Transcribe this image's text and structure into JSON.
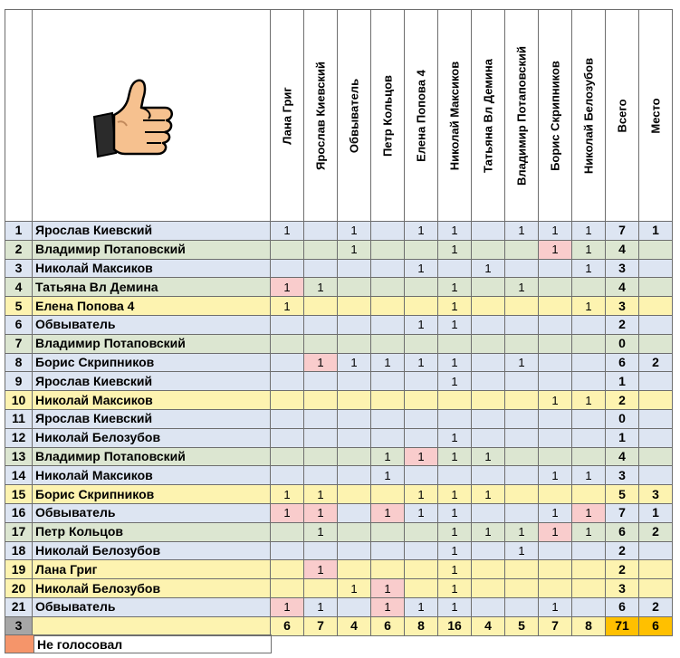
{
  "colors": {
    "blue": "#dde5f2",
    "green": "#dce6d1",
    "yellow": "#fdf3b0",
    "pink": "#f9cccc",
    "gray": "#a6a6a6",
    "orange": "#ffc000",
    "legend": "#f5956a",
    "white": "#ffffff"
  },
  "header": {
    "logo_icon": "thumbs-up-icon",
    "columns": [
      "Лана Григ",
      "Ярослав Киевский",
      "Обвыватель",
      "Петр Кольцов",
      "Елена Попова 4",
      "Николай Максиков",
      "Татьяна Вл Демина",
      "Владимир Потаповский",
      "Борис Скрипников",
      "Николай Белозубов",
      "Всего",
      "Место"
    ]
  },
  "rows": [
    {
      "num": "1",
      "name": "Ярослав Киевский",
      "rc": "blue",
      "cells": [
        "1",
        "",
        "1",
        "",
        "1",
        "1",
        "",
        "1",
        "1",
        "1"
      ],
      "pink": [],
      "total": "7",
      "place": "1"
    },
    {
      "num": "2",
      "name": "Владимир Потаповский",
      "rc": "green",
      "cells": [
        "",
        "",
        "1",
        "",
        "",
        "1",
        "",
        "",
        "1",
        "1"
      ],
      "pink": [
        8
      ],
      "total": "4",
      "place": ""
    },
    {
      "num": "3",
      "name": "Николай Максиков",
      "rc": "blue",
      "cells": [
        "",
        "",
        "",
        "",
        "1",
        "",
        "1",
        "",
        "",
        "1"
      ],
      "pink": [],
      "total": "3",
      "place": ""
    },
    {
      "num": "4",
      "name": "Татьяна Вл Демина",
      "rc": "green",
      "cells": [
        "1",
        "1",
        "",
        "",
        "",
        "1",
        "",
        "1",
        "",
        ""
      ],
      "pink": [
        0
      ],
      "total": "4",
      "place": ""
    },
    {
      "num": "5",
      "name": "Елена Попова 4",
      "rc": "yellow",
      "cells": [
        "1",
        "",
        "",
        "",
        "",
        "1",
        "",
        "",
        "",
        "1"
      ],
      "pink": [],
      "total": "3",
      "place": ""
    },
    {
      "num": "6",
      "name": "Обвыватель",
      "rc": "blue",
      "cells": [
        "",
        "",
        "",
        "",
        "1",
        "1",
        "",
        "",
        "",
        ""
      ],
      "pink": [],
      "total": "2",
      "place": ""
    },
    {
      "num": "7",
      "name": "Владимир Потаповский",
      "rc": "green",
      "cells": [
        "",
        "",
        "",
        "",
        "",
        "",
        "",
        "",
        "",
        ""
      ],
      "pink": [],
      "total": "0",
      "place": ""
    },
    {
      "num": "8",
      "name": "Борис Скрипников",
      "rc": "blue",
      "cells": [
        "",
        "1",
        "1",
        "1",
        "1",
        "1",
        "",
        "1",
        "",
        ""
      ],
      "pink": [
        1
      ],
      "total": "6",
      "place": "2"
    },
    {
      "num": "9",
      "name": "Ярослав Киевский",
      "rc": "blue",
      "cells": [
        "",
        "",
        "",
        "",
        "",
        "1",
        "",
        "",
        "",
        ""
      ],
      "pink": [],
      "total": "1",
      "place": ""
    },
    {
      "num": "10",
      "name": "Николай Максиков",
      "rc": "yellow",
      "cells": [
        "",
        "",
        "",
        "",
        "",
        "",
        "",
        "",
        "1",
        "1"
      ],
      "pink": [],
      "total": "2",
      "place": ""
    },
    {
      "num": "11",
      "name": "Ярослав Киевский",
      "rc": "blue",
      "cells": [
        "",
        "",
        "",
        "",
        "",
        "",
        "",
        "",
        "",
        ""
      ],
      "pink": [],
      "total": "0",
      "place": ""
    },
    {
      "num": "12",
      "name": "Николай Белозубов",
      "rc": "blue",
      "cells": [
        "",
        "",
        "",
        "",
        "",
        "1",
        "",
        "",
        "",
        ""
      ],
      "pink": [],
      "total": "1",
      "place": ""
    },
    {
      "num": "13",
      "name": "Владимир Потаповский",
      "rc": "green",
      "cells": [
        "",
        "",
        "",
        "1",
        "1",
        "1",
        "1",
        "",
        "",
        ""
      ],
      "pink": [
        4
      ],
      "total": "4",
      "place": ""
    },
    {
      "num": "14",
      "name": "Николай Максиков",
      "rc": "blue",
      "cells": [
        "",
        "",
        "",
        "1",
        "",
        "",
        "",
        "",
        "1",
        "1"
      ],
      "pink": [],
      "total": "3",
      "place": ""
    },
    {
      "num": "15",
      "name": "Борис Скрипников",
      "rc": "yellow",
      "cells": [
        "1",
        "1",
        "",
        "",
        "1",
        "1",
        "1",
        "",
        "",
        ""
      ],
      "pink": [],
      "total": "5",
      "place": "3"
    },
    {
      "num": "16",
      "name": "Обвыватель",
      "rc": "blue",
      "cells": [
        "1",
        "1",
        "",
        "1",
        "1",
        "1",
        "",
        "",
        "1",
        "1"
      ],
      "pink": [
        0,
        1,
        3,
        9
      ],
      "total": "7",
      "place": "1"
    },
    {
      "num": "17",
      "name": "Петр Кольцов",
      "rc": "green",
      "cells": [
        "",
        "1",
        "",
        "",
        "",
        "1",
        "1",
        "1",
        "1",
        "1"
      ],
      "pink": [
        8
      ],
      "total": "6",
      "place": "2"
    },
    {
      "num": "18",
      "name": "Николай Белозубов",
      "rc": "blue",
      "cells": [
        "",
        "",
        "",
        "",
        "",
        "1",
        "",
        "1",
        "",
        ""
      ],
      "pink": [],
      "total": "2",
      "place": ""
    },
    {
      "num": "19",
      "name": "Лана Григ",
      "rc": "yellow",
      "cells": [
        "",
        "1",
        "",
        "",
        "",
        "1",
        "",
        "",
        "",
        ""
      ],
      "pink": [
        1
      ],
      "total": "2",
      "place": ""
    },
    {
      "num": "20",
      "name": "Николай Белозубов",
      "rc": "yellow",
      "cells": [
        "",
        "",
        "1",
        "1",
        "",
        "1",
        "",
        "",
        "",
        ""
      ],
      "pink": [
        3
      ],
      "total": "3",
      "place": ""
    },
    {
      "num": "21",
      "name": "Обвыватель",
      "rc": "blue",
      "cells": [
        "1",
        "1",
        "",
        "1",
        "1",
        "1",
        "",
        "",
        "1",
        ""
      ],
      "pink": [
        0,
        3
      ],
      "total": "6",
      "place": "2"
    }
  ],
  "summary": {
    "num": "3",
    "cells": [
      "6",
      "7",
      "4",
      "6",
      "8",
      "16",
      "4",
      "5",
      "7",
      "8"
    ],
    "total": "71",
    "place": "6"
  },
  "legend": {
    "label": "Не голосовал"
  }
}
